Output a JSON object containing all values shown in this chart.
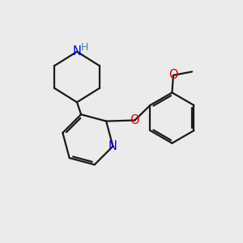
{
  "bg_color": "#ebebeb",
  "bond_color": "#1a1a1a",
  "N_color": "#0000ee",
  "O_color": "#dd0000",
  "H_color": "#3a8a8a",
  "line_width": 1.6,
  "font_size": 10.5,
  "figsize": [
    3.0,
    3.0
  ],
  "dpi": 100,
  "xlim": [
    0,
    10
  ],
  "ylim": [
    0,
    10
  ]
}
